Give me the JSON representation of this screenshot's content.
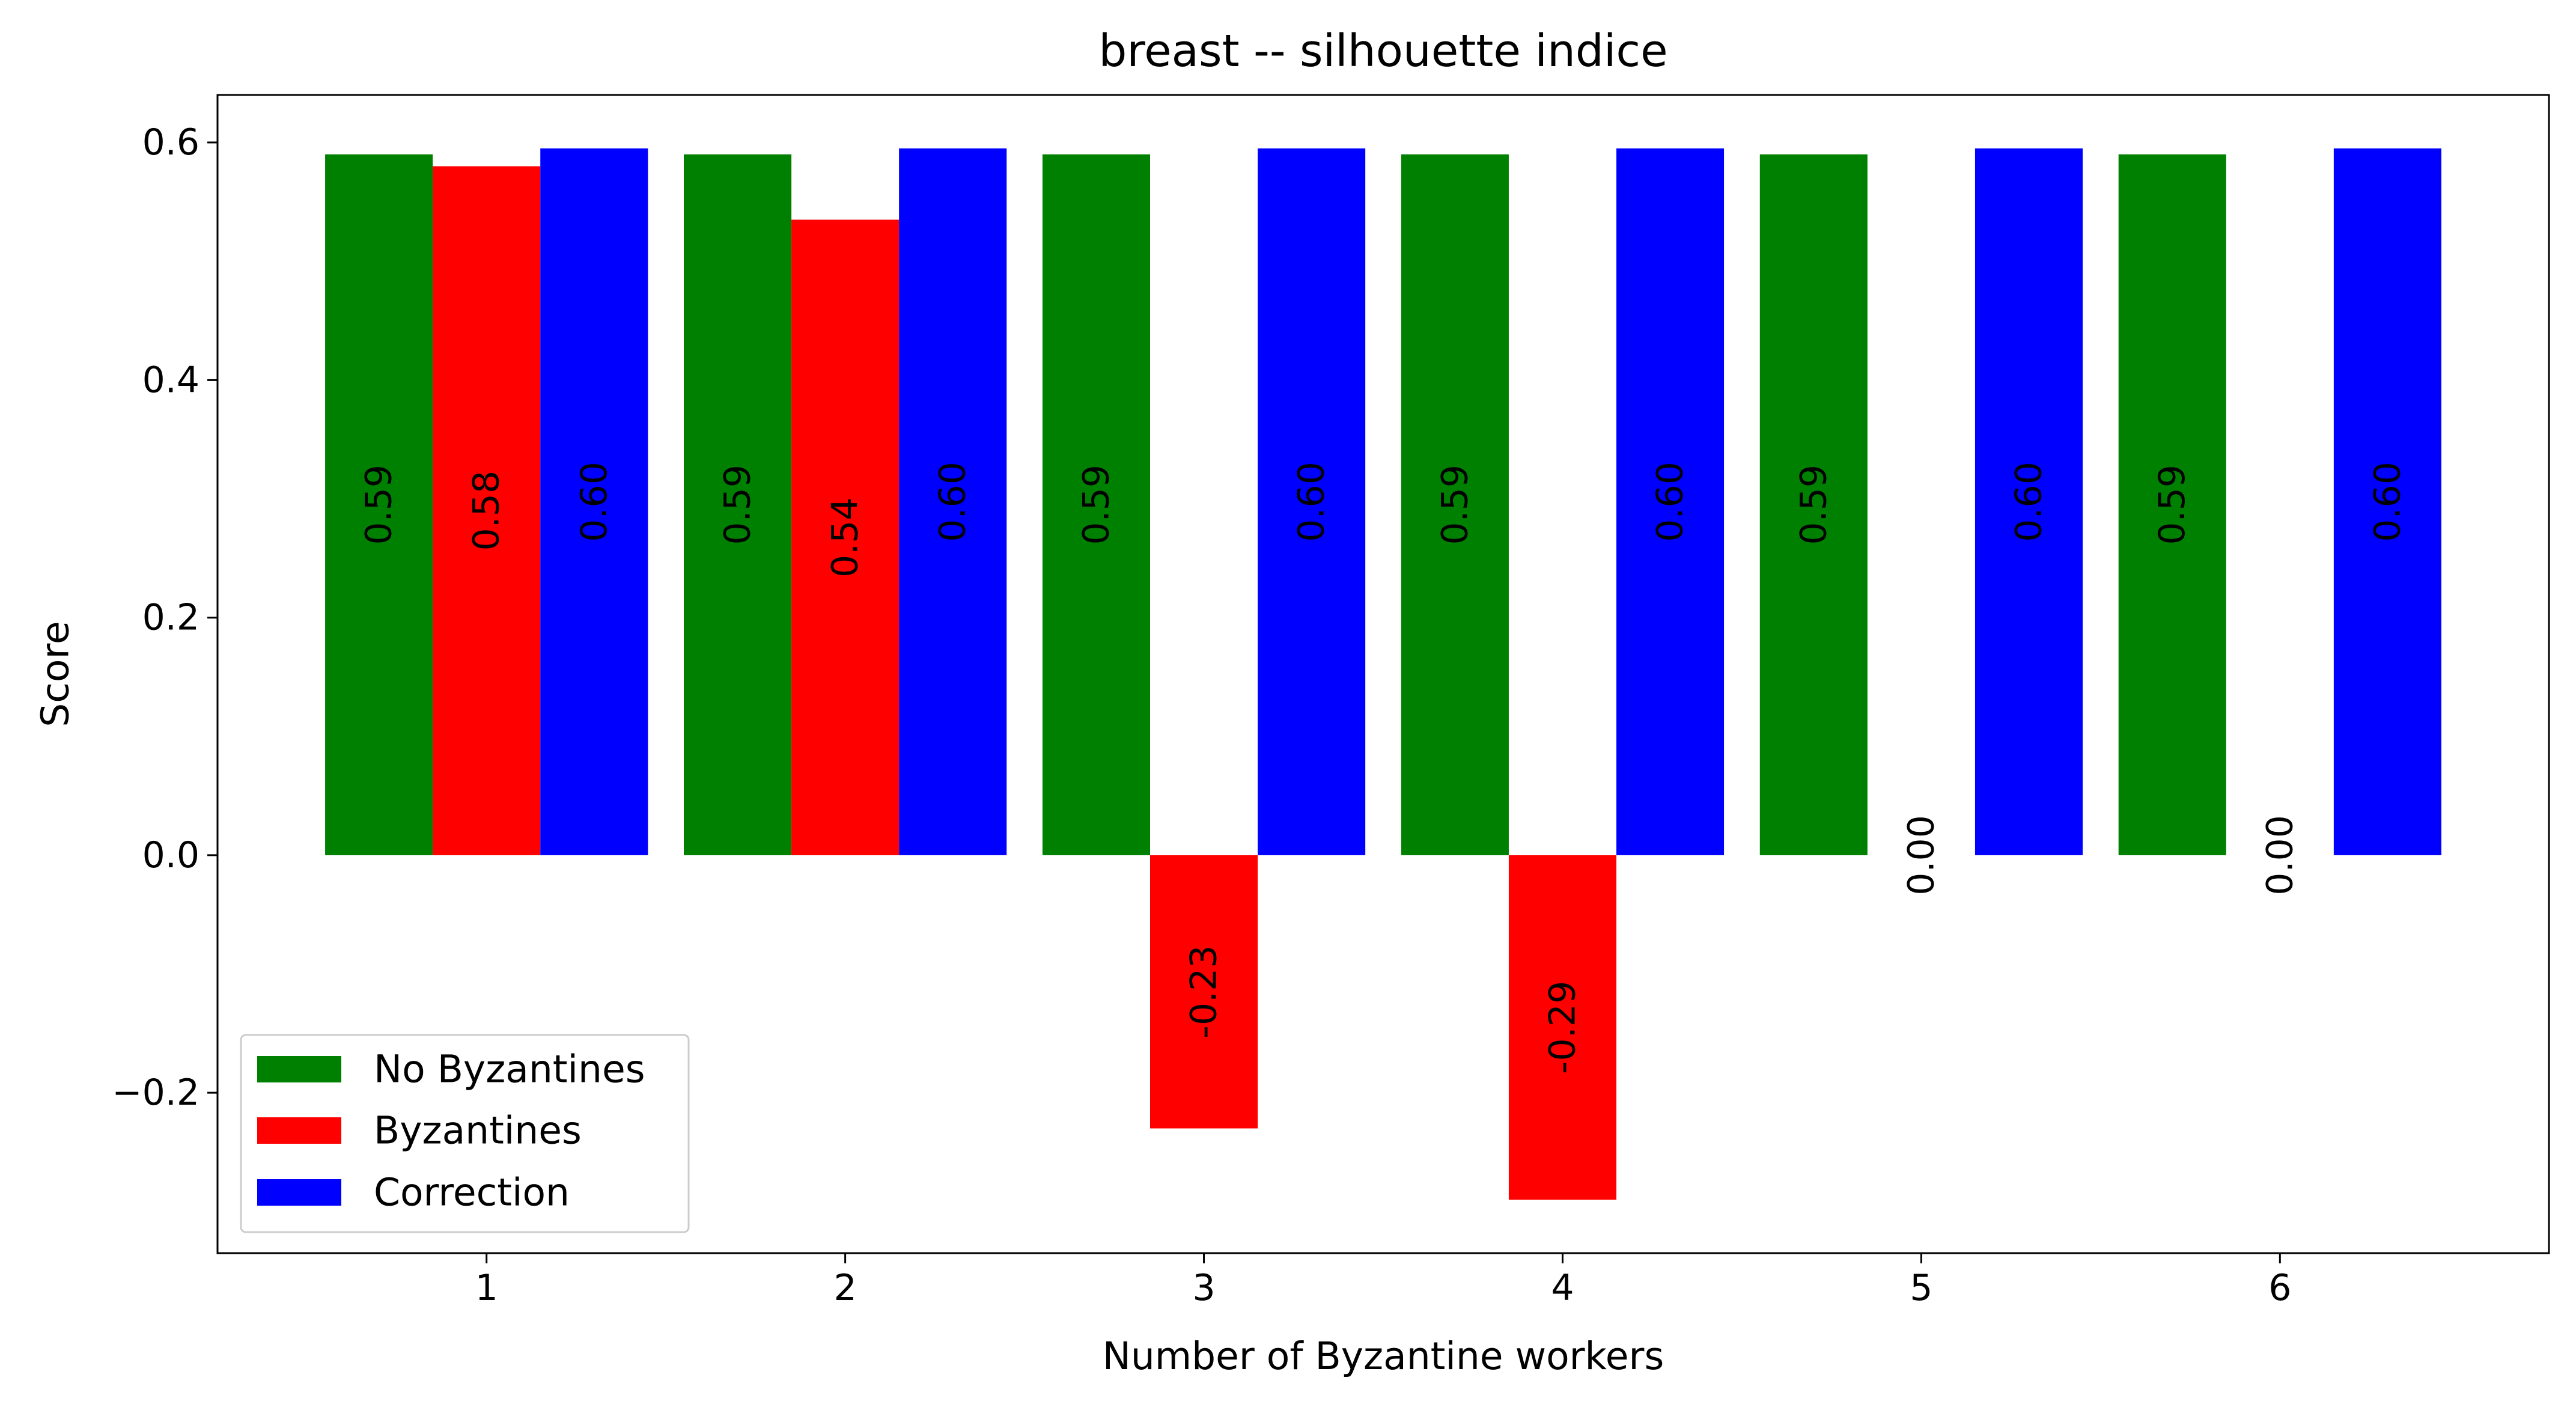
{
  "chart_data": {
    "type": "bar",
    "title": "breast -- silhouette indice",
    "xlabel": "Number of Byzantine workers",
    "ylabel": "Score",
    "categories": [
      "1",
      "2",
      "3",
      "4",
      "5",
      "6"
    ],
    "series": [
      {
        "name": "No Byzantines",
        "color": "#008000",
        "values": [
          0.59,
          0.59,
          0.59,
          0.59,
          0.59,
          0.59
        ],
        "labels": [
          "0.59",
          "0.59",
          "0.59",
          "0.59",
          "0.59",
          "0.59"
        ]
      },
      {
        "name": "Byzantines",
        "color": "#ff0000",
        "values": [
          0.58,
          0.535,
          -0.23,
          -0.29,
          0.0,
          0.0
        ],
        "labels": [
          "0.58",
          "0.54",
          "-0.23",
          "-0.29",
          "0.00",
          "0.00"
        ]
      },
      {
        "name": "Correction",
        "color": "#0000ff",
        "values": [
          0.595,
          0.595,
          0.595,
          0.595,
          0.595,
          0.595
        ],
        "labels": [
          "0.60",
          "0.60",
          "0.60",
          "0.60",
          "0.60",
          "0.60"
        ]
      }
    ],
    "yticks": [
      -0.2,
      0.0,
      0.2,
      0.4,
      0.6
    ],
    "ytick_labels": [
      "−0.2",
      "0.0",
      "0.2",
      "0.4",
      "0.6"
    ],
    "ylim": [
      -0.335,
      0.64
    ],
    "xlim": [
      0.25,
      6.75
    ],
    "grid": false,
    "legend_position": "lower-left"
  }
}
